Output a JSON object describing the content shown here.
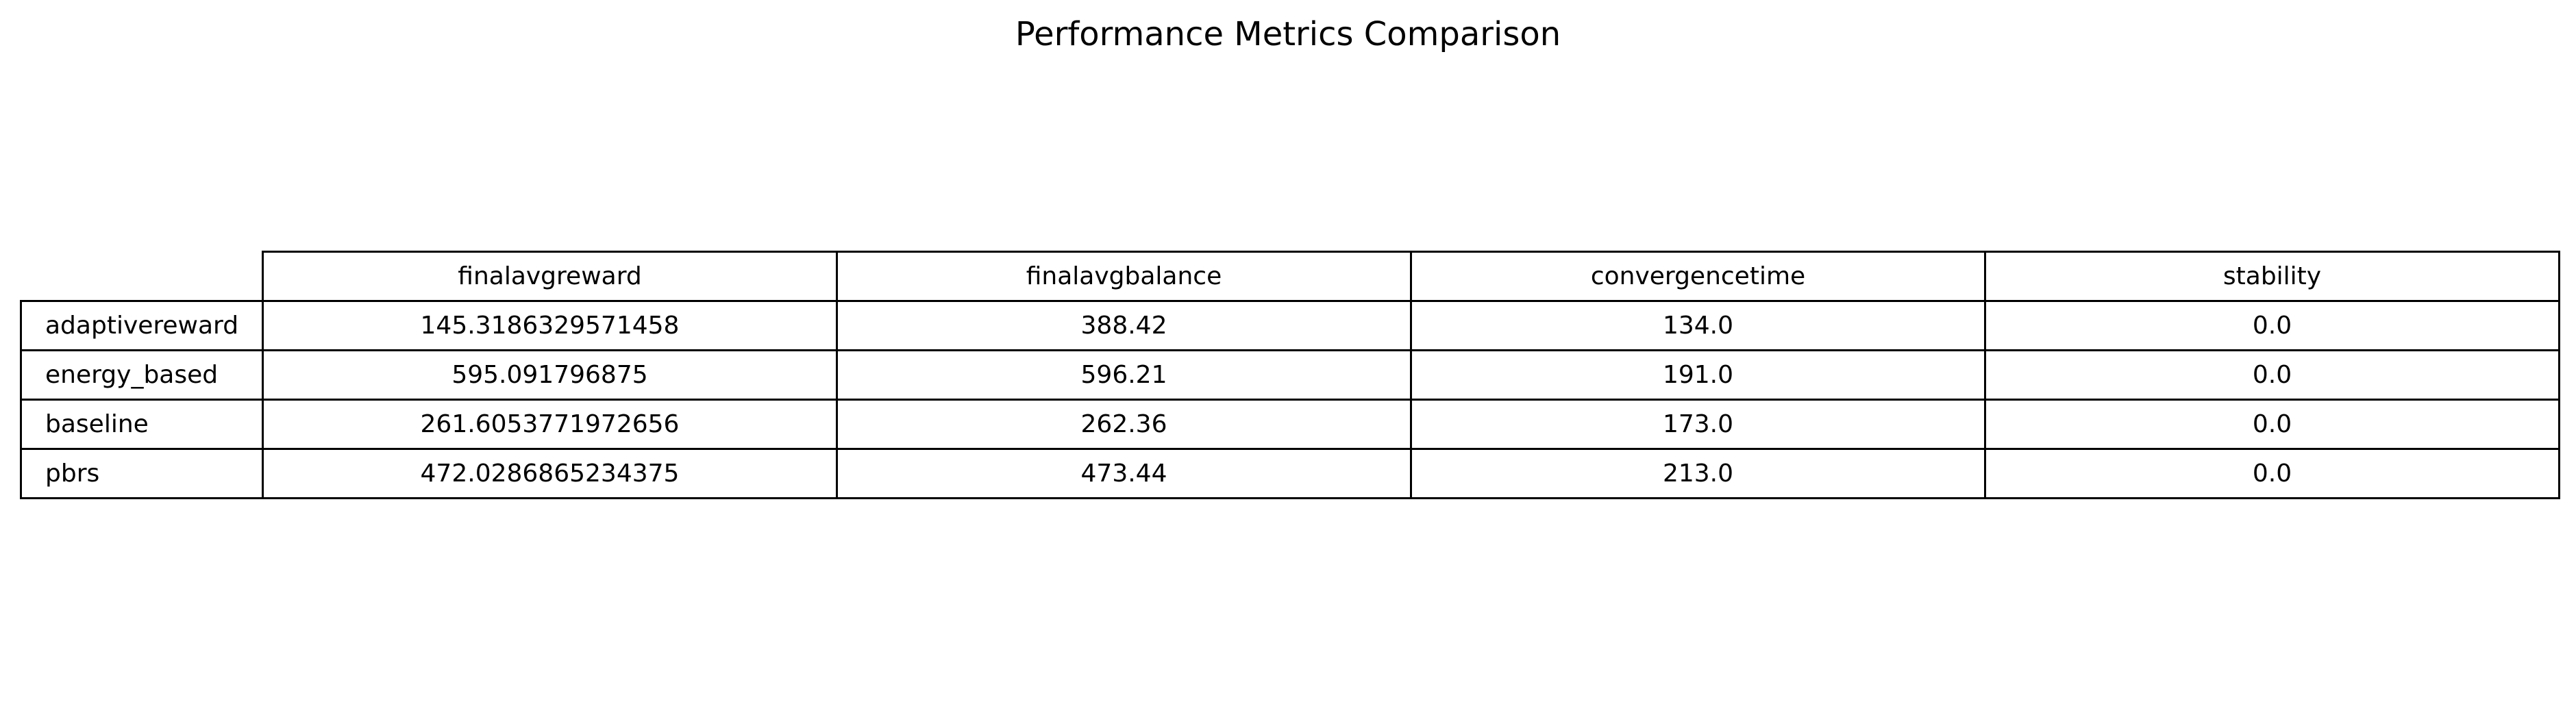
{
  "chart_data": {
    "type": "table",
    "title": "Performance Metrics Comparison",
    "columns": [
      "finalavgreward",
      "finalavgbalance",
      "convergencetime",
      "stability"
    ],
    "rows": [
      {
        "label": "adaptivereward",
        "values": [
          "145.3186329571458",
          "388.42",
          "134.0",
          "0.0"
        ]
      },
      {
        "label": "energy_based",
        "values": [
          "595.091796875",
          "596.21",
          "191.0",
          "0.0"
        ]
      },
      {
        "label": "baseline",
        "values": [
          "261.6053771972656",
          "262.36",
          "173.0",
          "0.0"
        ]
      },
      {
        "label": "pbrs",
        "values": [
          "472.0286865234375",
          "473.44",
          "213.0",
          "0.0"
        ]
      }
    ]
  }
}
